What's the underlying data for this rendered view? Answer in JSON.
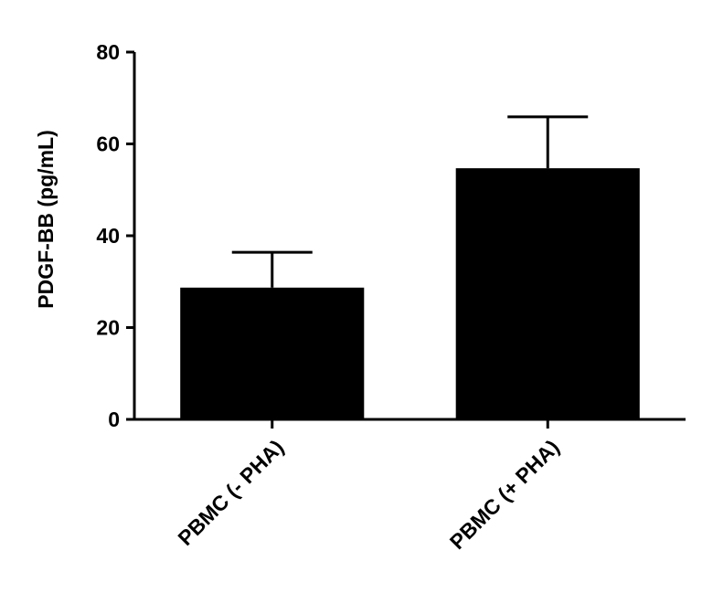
{
  "chart_data": {
    "type": "bar",
    "y_label": "PDGF-BB (pg/mL)",
    "categories": [
      "PBMC (- PHA)",
      "PBMC (+ PHA)"
    ],
    "values": [
      28.7,
      54.7
    ],
    "errors": [
      7.7,
      11.2
    ],
    "color": "#000000",
    "ylim": [
      0,
      80
    ],
    "yticks": [
      0,
      20,
      40,
      60,
      80
    ],
    "grid": false
  }
}
